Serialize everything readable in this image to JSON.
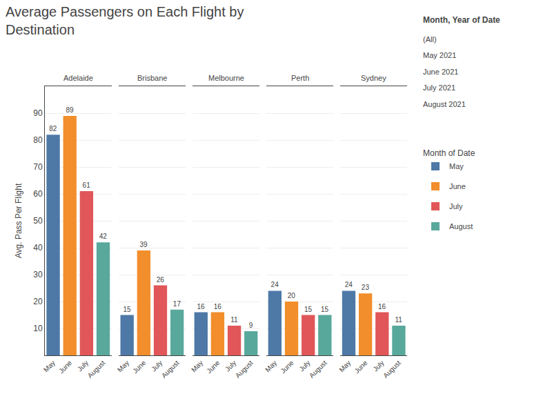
{
  "chart_data": {
    "type": "bar",
    "title": "Average Passengers on Each Flight by\nDestination",
    "ylabel": "Avg. Pass Per Flight",
    "categories": [
      "Adelaide",
      "Brisbane",
      "Melbourne",
      "Perth",
      "Sydney"
    ],
    "series": [
      {
        "name": "May",
        "color": "#4E79A7",
        "values": [
          82,
          15,
          16,
          24,
          24
        ]
      },
      {
        "name": "June",
        "color": "#F28E2B",
        "values": [
          89,
          39,
          16,
          20,
          23
        ]
      },
      {
        "name": "July",
        "color": "#E15759",
        "values": [
          61,
          26,
          11,
          15,
          16
        ]
      },
      {
        "name": "August",
        "color": "#59A89C",
        "values": [
          42,
          17,
          9,
          15,
          11
        ]
      }
    ],
    "ylim": [
      0,
      100
    ],
    "yticks": [
      10,
      20,
      30,
      40,
      50,
      60,
      70,
      80,
      90
    ],
    "grid": true,
    "data_labels": true,
    "legend": "right",
    "legend_title": "Month of Date",
    "annotations": [
      "Month, Year of Date",
      "(All)",
      "May 2021",
      "June 2021",
      "July 2021",
      "August 2021"
    ]
  }
}
